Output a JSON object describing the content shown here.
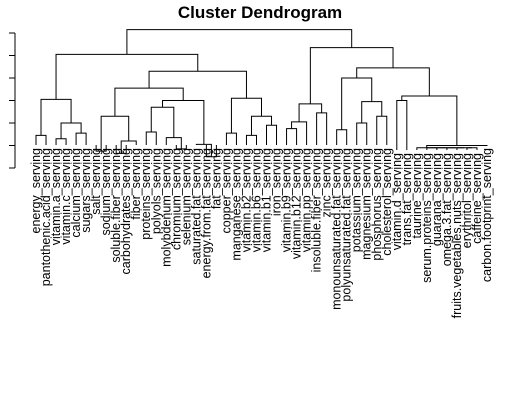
{
  "chart_data": {
    "type": "dendrogram",
    "title": "Cluster Dendrogram",
    "y_axis": {
      "ticks": [
        0,
        1,
        2,
        3,
        4,
        5,
        6
      ],
      "tick_labels_shown": false
    },
    "leaves": [
      "energy_serving",
      "pantothenic.acid_serving",
      "vitamin.a_serving",
      "vitamin.c_serving",
      "calcium_serving",
      "sugars_serving",
      "salt_serving",
      "sodium_serving",
      "soluble.fiber_serving",
      "carbohydrates_serving",
      "fiber_serving",
      "proteins_serving",
      "polyols_serving",
      "molybdenum_serving",
      "chromium_serving",
      "selenium_serving",
      "saturated.fat_serving",
      "energy.from.fat_serving",
      "fat_serving",
      "copper_serving",
      "manganese_serving",
      "vitamin.b2_serving",
      "vitamin.b6_serving",
      "vitamin.b1_serving",
      "iron_serving",
      "vitamin.b9_serving",
      "vitamin.b12_serving",
      "vitamin.pp_serving",
      "insoluble.fiber_serving",
      "zinc_serving",
      "monounsaturated.fat_serving",
      "polyunsaturated.fat_serving",
      "potassium_serving",
      "magnesium_serving",
      "phosphorus_serving",
      "cholesterol_serving",
      "vitamin.d_serving",
      "trans.fat_serving",
      "taurine_serving",
      "serum.proteins_serving",
      "guarana_serving",
      "omega.3.fat_serving",
      "fruits.vegetables.nuts_serving",
      "erythritol_serving",
      "caffeine_serving",
      "carbon.footprint_serving"
    ],
    "merges": [
      {
        "id": "a1",
        "left": 0,
        "right": 1,
        "height": 1.45
      },
      {
        "id": "a2",
        "left": 2,
        "right": 3,
        "height": 1.3
      },
      {
        "id": "a3",
        "left": 4,
        "right": 5,
        "height": 1.55
      },
      {
        "id": "a4",
        "left": "a2",
        "right": "a3",
        "height": 2.0
      },
      {
        "id": "a5",
        "left": "a1",
        "right": "a4",
        "height": 3.05
      },
      {
        "id": "b1",
        "left": 6,
        "right": 7,
        "height": 0.75
      },
      {
        "id": "b2",
        "left": 8,
        "right": 9,
        "height": 0.65
      },
      {
        "id": "b3",
        "left": "b2",
        "right": 10,
        "height": 1.2
      },
      {
        "id": "b4",
        "left": "b1",
        "right": "b3",
        "height": 2.3
      },
      {
        "id": "c1",
        "left": 11,
        "right": 12,
        "height": 1.6
      },
      {
        "id": "c2",
        "left": 14,
        "right": 15,
        "height": 0.85
      },
      {
        "id": "c3",
        "left": 13,
        "right": "c2",
        "height": 1.35
      },
      {
        "id": "c4",
        "left": "c1",
        "right": "c3",
        "height": 2.7
      },
      {
        "id": "c5",
        "left": 17,
        "right": 18,
        "height": 0.5
      },
      {
        "id": "c6",
        "left": 16,
        "right": "c5",
        "height": 1.05
      },
      {
        "id": "c7",
        "left": "c4",
        "right": "c6",
        "height": 3.0
      },
      {
        "id": "b5",
        "left": "b4",
        "right": "c7",
        "height": 3.55
      },
      {
        "id": "d1",
        "left": 19,
        "right": 20,
        "height": 1.55
      },
      {
        "id": "d2",
        "left": 21,
        "right": 22,
        "height": 1.45
      },
      {
        "id": "d3",
        "left": 23,
        "right": 24,
        "height": 1.9
      },
      {
        "id": "d4",
        "left": "d2",
        "right": "d3",
        "height": 2.3
      },
      {
        "id": "d5",
        "left": "d1",
        "right": "d4",
        "height": 3.1
      },
      {
        "id": "b6",
        "left": "b5",
        "right": "d5",
        "height": 4.3
      },
      {
        "id": "A",
        "left": "a5",
        "right": "b6",
        "height": 5.05
      },
      {
        "id": "e1",
        "left": 25,
        "right": 26,
        "height": 1.75
      },
      {
        "id": "e2",
        "left": "e1",
        "right": 27,
        "height": 2.05
      },
      {
        "id": "e3",
        "left": 28,
        "right": 29,
        "height": 2.45
      },
      {
        "id": "e4",
        "left": "e2",
        "right": "e3",
        "height": 2.85
      },
      {
        "id": "e5",
        "left": 30,
        "right": 31,
        "height": 1.7
      },
      {
        "id": "e6",
        "left": 32,
        "right": 33,
        "height": 2.0
      },
      {
        "id": "e7",
        "left": 34,
        "right": 35,
        "height": 2.3
      },
      {
        "id": "e8",
        "left": "e6",
        "right": "e7",
        "height": 2.95
      },
      {
        "id": "e9",
        "left": "e5",
        "right": "e8",
        "height": 4.0
      },
      {
        "id": "f1",
        "left": 36,
        "right": 37,
        "height": 3.0
      },
      {
        "id": "f2",
        "left": 43,
        "right": 44,
        "height": 0.9
      },
      {
        "id": "f3",
        "left": 42,
        "right": "f2",
        "height": 0.9
      },
      {
        "id": "f4",
        "left": 41,
        "right": "f3",
        "height": 0.9
      },
      {
        "id": "f5",
        "left": 40,
        "right": "f4",
        "height": 0.9
      },
      {
        "id": "f6",
        "left": 39,
        "right": "f5",
        "height": 0.9
      },
      {
        "id": "f7",
        "left": 38,
        "right": "f6",
        "height": 0.9
      },
      {
        "id": "f8",
        "left": "f7",
        "right": 45,
        "height": 1.0
      },
      {
        "id": "f9",
        "left": "f1",
        "right": "f8",
        "height": 3.2
      },
      {
        "id": "e10",
        "left": "e9",
        "right": "f9",
        "height": 4.45
      },
      {
        "id": "B",
        "left": "e4",
        "right": "e10",
        "height": 5.35
      },
      {
        "id": "root",
        "left": "A",
        "right": "B",
        "height": 6.15
      }
    ]
  }
}
